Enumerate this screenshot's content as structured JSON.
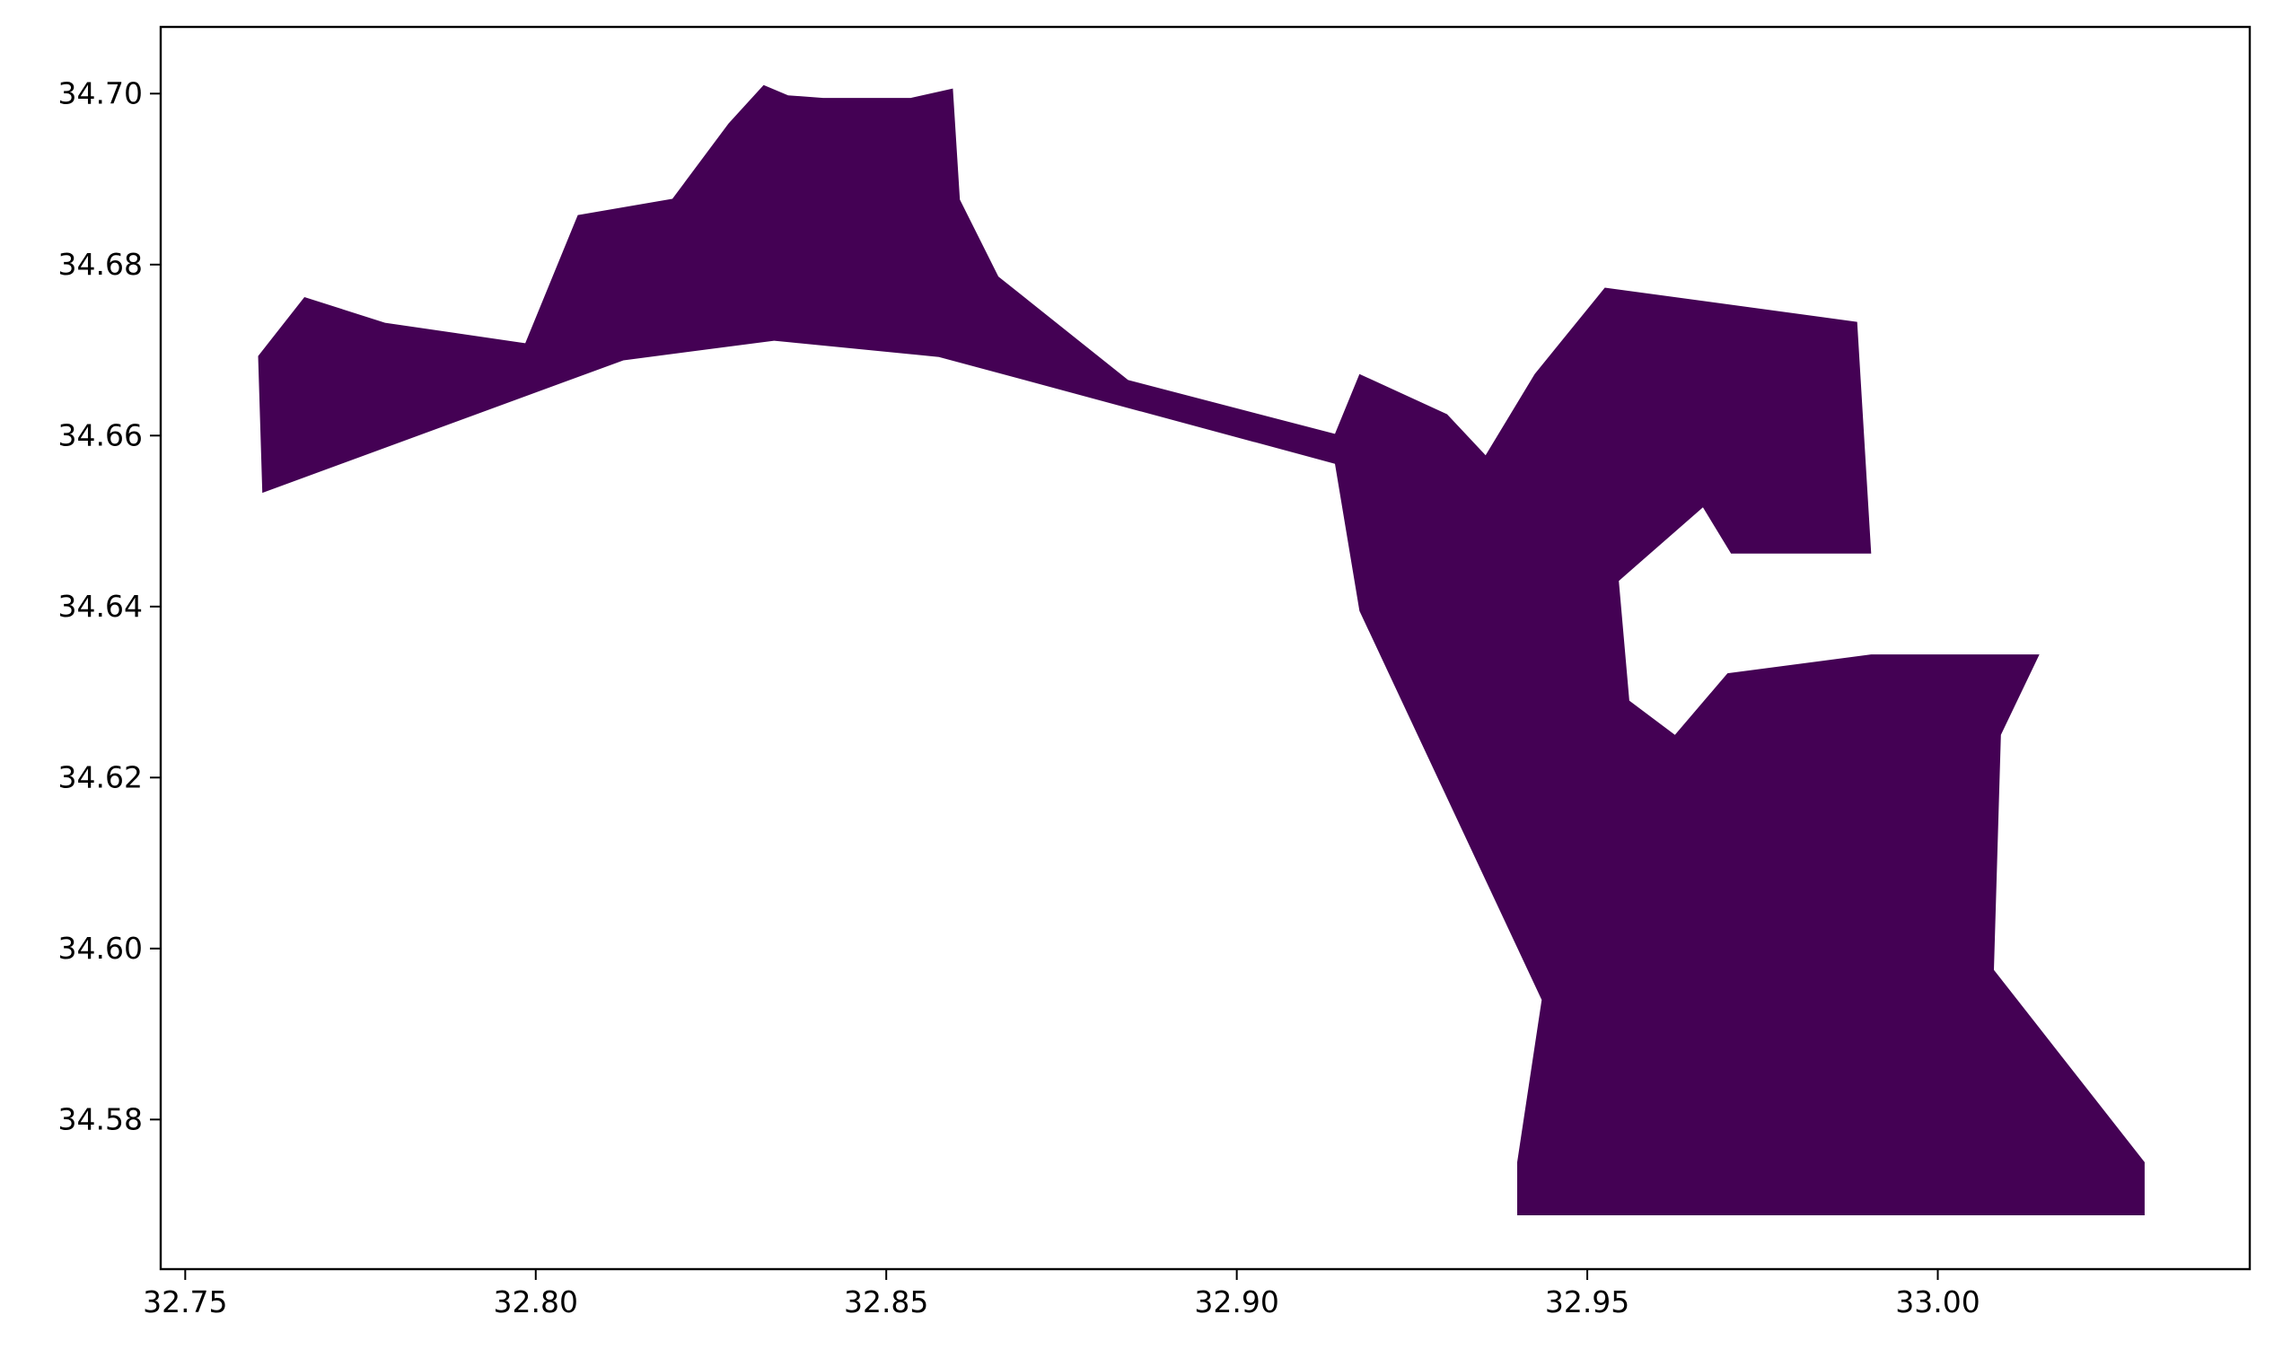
{
  "chart_data": {
    "type": "map",
    "title": "",
    "xlabel": "",
    "ylabel": "",
    "xlim": [
      32.7465,
      33.0445
    ],
    "ylim": [
      34.5625,
      34.7078
    ],
    "grid": false,
    "legend": "none",
    "fill_color": "#440154",
    "x_ticks": [
      {
        "value": 32.75,
        "label": "32.75"
      },
      {
        "value": 32.8,
        "label": "32.80"
      },
      {
        "value": 32.85,
        "label": "32.85"
      },
      {
        "value": 32.9,
        "label": "32.90"
      },
      {
        "value": 32.95,
        "label": "32.95"
      },
      {
        "value": 33.0,
        "label": "33.00"
      }
    ],
    "y_ticks": [
      {
        "value": 34.58,
        "label": "34.58"
      },
      {
        "value": 34.6,
        "label": "34.60"
      },
      {
        "value": 34.62,
        "label": "34.62"
      },
      {
        "value": 34.64,
        "label": "34.64"
      },
      {
        "value": 34.66,
        "label": "34.66"
      },
      {
        "value": 34.68,
        "label": "34.68"
      },
      {
        "value": 34.7,
        "label": "34.70"
      }
    ],
    "polygons": [
      {
        "name": "region",
        "coordinates": [
          [
            32.7604,
            34.6693
          ],
          [
            32.767,
            34.6762
          ],
          [
            32.7785,
            34.6732
          ],
          [
            32.7985,
            34.6708
          ],
          [
            32.806,
            34.6858
          ],
          [
            32.8195,
            34.6877
          ],
          [
            32.8275,
            34.6965
          ],
          [
            32.8325,
            34.701
          ],
          [
            32.836,
            34.6998
          ],
          [
            32.841,
            34.6995
          ],
          [
            32.8535,
            34.6995
          ],
          [
            32.8595,
            34.7006
          ],
          [
            32.8605,
            34.6876
          ],
          [
            32.866,
            34.6786
          ],
          [
            32.8845,
            34.6665
          ],
          [
            32.914,
            34.6602
          ],
          [
            32.9175,
            34.6672
          ],
          [
            32.93,
            34.6625
          ],
          [
            32.9355,
            34.6577
          ],
          [
            32.9425,
            34.6672
          ],
          [
            32.9525,
            34.6773
          ],
          [
            32.9885,
            34.6733
          ],
          [
            32.9905,
            34.6462
          ],
          [
            32.9705,
            34.6462
          ],
          [
            32.9665,
            34.6516
          ],
          [
            32.9545,
            34.643
          ],
          [
            32.956,
            34.629
          ],
          [
            32.9625,
            34.625
          ],
          [
            32.97,
            34.6322
          ],
          [
            32.9905,
            34.6344
          ],
          [
            33.0145,
            34.6344
          ],
          [
            33.009,
            34.625
          ],
          [
            33.008,
            34.5975
          ],
          [
            33.0295,
            34.575
          ],
          [
            33.0295,
            34.5688
          ],
          [
            32.94,
            34.5688
          ],
          [
            32.94,
            34.575
          ],
          [
            32.9435,
            34.594
          ],
          [
            32.9175,
            34.6395
          ],
          [
            32.914,
            34.6567
          ],
          [
            32.8575,
            34.6692
          ],
          [
            32.834,
            34.6711
          ],
          [
            32.8125,
            34.6688
          ],
          [
            32.761,
            34.6533
          ]
        ]
      }
    ]
  }
}
